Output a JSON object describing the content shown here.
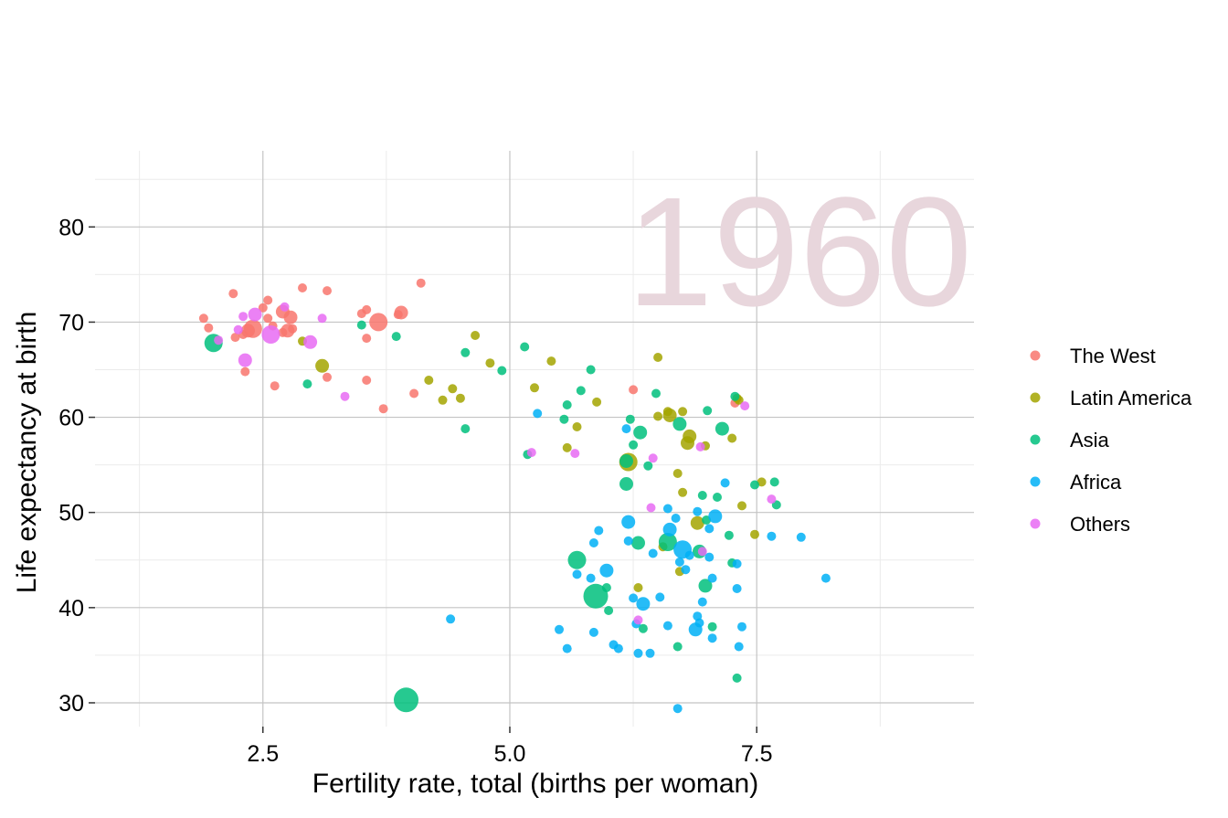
{
  "chart_data": {
    "type": "scatter",
    "title": "",
    "annotation": "1960",
    "xlabel": "Fertility rate, total (births per woman)",
    "ylabel": "Life expectancy at birth",
    "xlim": [
      0.8,
      9.7
    ],
    "ylim": [
      27.5,
      88
    ],
    "x_ticks": [
      2.5,
      5.0,
      7.5
    ],
    "x_tick_labels": [
      "2.5",
      "5.0",
      "7.5"
    ],
    "x_minor_ticks": [
      1.25,
      3.75,
      6.25,
      8.75
    ],
    "y_ticks": [
      30,
      40,
      50,
      60,
      70,
      80
    ],
    "y_tick_labels": [
      "30",
      "40",
      "50",
      "60",
      "70",
      "80"
    ],
    "y_minor_ticks": [
      35,
      45,
      55,
      65,
      75,
      85
    ],
    "grid": true,
    "legend_position": "right",
    "marker_size_encodes": "population",
    "colors": {
      "The West": "#F8766D",
      "Latin America": "#A3A500",
      "Asia": "#00BF7D",
      "Africa": "#00B0F6",
      "Others": "#E76BF3"
    },
    "legend": [
      "The West",
      "Latin America",
      "Asia",
      "Africa",
      "Others"
    ],
    "series": [
      {
        "name": "The West",
        "points": [
          [
            1.9,
            70.4,
            1
          ],
          [
            1.95,
            69.4,
            1
          ],
          [
            2.2,
            73.0,
            1
          ],
          [
            2.22,
            68.4,
            1
          ],
          [
            2.3,
            68.7,
            1
          ],
          [
            2.32,
            64.8,
            1
          ],
          [
            2.35,
            69.1,
            2
          ],
          [
            2.4,
            69.3,
            3
          ],
          [
            2.5,
            71.5,
            1
          ],
          [
            2.55,
            72.3,
            1
          ],
          [
            2.55,
            70.4,
            1
          ],
          [
            2.6,
            69.6,
            1
          ],
          [
            2.62,
            63.3,
            1
          ],
          [
            2.7,
            71.1,
            2
          ],
          [
            2.7,
            68.9,
            1
          ],
          [
            2.75,
            69.1,
            2
          ],
          [
            2.78,
            70.5,
            2
          ],
          [
            2.8,
            69.3,
            1
          ],
          [
            2.9,
            73.6,
            1
          ],
          [
            3.15,
            73.3,
            1
          ],
          [
            3.15,
            64.2,
            1
          ],
          [
            3.5,
            70.9,
            1
          ],
          [
            3.55,
            71.3,
            1
          ],
          [
            3.55,
            68.3,
            1
          ],
          [
            3.55,
            63.9,
            1
          ],
          [
            3.67,
            70.0,
            3
          ],
          [
            3.72,
            60.9,
            1
          ],
          [
            3.87,
            70.8,
            1
          ],
          [
            3.9,
            71.0,
            2
          ],
          [
            4.03,
            62.5,
            1
          ],
          [
            4.1,
            74.1,
            1
          ],
          [
            6.25,
            62.9,
            1
          ],
          [
            7.28,
            61.5,
            1
          ]
        ]
      },
      {
        "name": "Latin America",
        "points": [
          [
            2.9,
            68.0,
            1
          ],
          [
            3.1,
            65.4,
            2
          ],
          [
            4.18,
            63.9,
            1
          ],
          [
            4.32,
            61.8,
            1
          ],
          [
            4.42,
            63.0,
            1
          ],
          [
            4.5,
            62.0,
            1
          ],
          [
            4.65,
            68.6,
            1
          ],
          [
            4.8,
            65.7,
            1
          ],
          [
            5.25,
            63.1,
            1
          ],
          [
            5.42,
            65.9,
            1
          ],
          [
            5.58,
            56.8,
            1
          ],
          [
            5.68,
            59.0,
            1
          ],
          [
            5.88,
            61.6,
            1
          ],
          [
            6.2,
            55.3,
            3
          ],
          [
            6.3,
            42.1,
            1
          ],
          [
            6.5,
            66.3,
            1
          ],
          [
            6.5,
            60.1,
            1
          ],
          [
            6.55,
            46.4,
            1
          ],
          [
            6.6,
            60.6,
            1
          ],
          [
            6.62,
            60.2,
            2
          ],
          [
            6.7,
            54.1,
            1
          ],
          [
            6.72,
            43.8,
            1
          ],
          [
            6.75,
            52.1,
            1
          ],
          [
            6.75,
            60.6,
            1
          ],
          [
            6.8,
            57.3,
            2
          ],
          [
            6.82,
            58.0,
            2
          ],
          [
            6.9,
            48.9,
            2
          ],
          [
            6.98,
            57.0,
            1
          ],
          [
            7.25,
            57.8,
            1
          ],
          [
            7.3,
            62.0,
            1
          ],
          [
            7.32,
            61.8,
            1
          ],
          [
            7.35,
            50.7,
            1
          ],
          [
            7.48,
            47.7,
            1
          ],
          [
            7.55,
            53.2,
            1
          ]
        ]
      },
      {
        "name": "Asia",
        "points": [
          [
            2.0,
            67.8,
            3
          ],
          [
            2.95,
            63.5,
            1
          ],
          [
            3.5,
            69.7,
            1
          ],
          [
            3.85,
            68.5,
            1
          ],
          [
            3.95,
            30.3,
            5
          ],
          [
            4.55,
            66.8,
            1
          ],
          [
            4.55,
            58.8,
            1
          ],
          [
            4.92,
            64.9,
            1
          ],
          [
            5.15,
            67.4,
            1
          ],
          [
            5.18,
            56.1,
            1
          ],
          [
            5.55,
            59.8,
            1
          ],
          [
            5.58,
            61.3,
            1
          ],
          [
            5.68,
            45.0,
            3
          ],
          [
            5.72,
            62.8,
            1
          ],
          [
            5.82,
            65.0,
            1
          ],
          [
            5.87,
            41.2,
            5
          ],
          [
            5.98,
            42.1,
            1
          ],
          [
            6.0,
            39.7,
            1
          ],
          [
            6.18,
            55.4,
            2
          ],
          [
            6.18,
            53.0,
            2
          ],
          [
            6.22,
            59.8,
            1
          ],
          [
            6.25,
            57.1,
            1
          ],
          [
            6.3,
            46.8,
            2
          ],
          [
            6.32,
            58.4,
            2
          ],
          [
            6.35,
            37.8,
            1
          ],
          [
            6.4,
            54.9,
            1
          ],
          [
            6.48,
            62.5,
            1
          ],
          [
            6.6,
            46.9,
            3
          ],
          [
            6.7,
            35.9,
            1
          ],
          [
            6.72,
            59.3,
            2
          ],
          [
            6.92,
            45.9,
            2
          ],
          [
            6.95,
            51.8,
            1
          ],
          [
            6.98,
            42.3,
            2
          ],
          [
            6.99,
            49.2,
            1
          ],
          [
            7.0,
            60.7,
            1
          ],
          [
            7.05,
            38.0,
            1
          ],
          [
            7.1,
            51.6,
            1
          ],
          [
            7.15,
            58.8,
            2
          ],
          [
            7.22,
            47.6,
            1
          ],
          [
            7.25,
            44.7,
            1
          ],
          [
            7.28,
            62.2,
            1
          ],
          [
            7.3,
            32.6,
            1
          ],
          [
            7.48,
            52.9,
            1
          ],
          [
            7.68,
            53.2,
            1
          ],
          [
            7.7,
            50.8,
            1
          ]
        ]
      },
      {
        "name": "Africa",
        "points": [
          [
            4.4,
            38.8,
            1
          ],
          [
            5.28,
            60.4,
            1
          ],
          [
            5.5,
            37.7,
            1
          ],
          [
            5.58,
            35.7,
            1
          ],
          [
            5.68,
            43.5,
            1
          ],
          [
            5.82,
            43.1,
            1
          ],
          [
            5.85,
            37.4,
            1
          ],
          [
            5.85,
            46.8,
            1
          ],
          [
            5.9,
            48.1,
            1
          ],
          [
            5.98,
            43.9,
            2
          ],
          [
            6.05,
            36.1,
            1
          ],
          [
            6.1,
            35.7,
            1
          ],
          [
            6.18,
            58.8,
            1
          ],
          [
            6.2,
            49.0,
            2
          ],
          [
            6.2,
            47.0,
            1
          ],
          [
            6.25,
            41.0,
            1
          ],
          [
            6.28,
            38.3,
            1
          ],
          [
            6.3,
            35.2,
            1
          ],
          [
            6.35,
            40.4,
            2
          ],
          [
            6.42,
            35.2,
            1
          ],
          [
            6.45,
            45.7,
            1
          ],
          [
            6.52,
            41.1,
            1
          ],
          [
            6.6,
            38.1,
            1
          ],
          [
            6.6,
            50.4,
            1
          ],
          [
            6.62,
            48.2,
            2
          ],
          [
            6.68,
            49.4,
            1
          ],
          [
            6.7,
            29.4,
            1
          ],
          [
            6.72,
            44.8,
            1
          ],
          [
            6.75,
            46.1,
            3
          ],
          [
            6.78,
            44.0,
            1
          ],
          [
            6.82,
            45.5,
            1
          ],
          [
            6.88,
            37.7,
            2
          ],
          [
            6.9,
            50.1,
            1
          ],
          [
            6.9,
            39.1,
            1
          ],
          [
            6.92,
            38.4,
            1
          ],
          [
            6.95,
            40.6,
            1
          ],
          [
            7.02,
            45.3,
            1
          ],
          [
            7.02,
            48.3,
            1
          ],
          [
            7.05,
            36.8,
            1
          ],
          [
            7.05,
            43.1,
            1
          ],
          [
            7.08,
            49.6,
            2
          ],
          [
            7.18,
            53.1,
            1
          ],
          [
            7.3,
            42.0,
            1
          ],
          [
            7.3,
            44.6,
            1
          ],
          [
            7.32,
            35.9,
            1
          ],
          [
            7.35,
            38.0,
            1
          ],
          [
            7.65,
            47.5,
            1
          ],
          [
            7.95,
            47.4,
            1
          ],
          [
            8.2,
            43.1,
            1
          ]
        ]
      },
      {
        "name": "Others",
        "points": [
          [
            2.05,
            68.1,
            1
          ],
          [
            2.25,
            69.2,
            1
          ],
          [
            2.3,
            70.6,
            1
          ],
          [
            2.32,
            66.0,
            2
          ],
          [
            2.42,
            70.8,
            2
          ],
          [
            2.58,
            68.7,
            3
          ],
          [
            2.72,
            71.6,
            1
          ],
          [
            2.98,
            67.9,
            2
          ],
          [
            3.1,
            70.4,
            1
          ],
          [
            3.33,
            62.2,
            1
          ],
          [
            5.22,
            56.3,
            1
          ],
          [
            5.66,
            56.2,
            1
          ],
          [
            6.3,
            38.7,
            1
          ],
          [
            6.43,
            50.5,
            1
          ],
          [
            6.45,
            55.7,
            1
          ],
          [
            6.93,
            56.9,
            1
          ],
          [
            6.95,
            45.9,
            1
          ],
          [
            7.38,
            61.2,
            1
          ],
          [
            7.65,
            51.4,
            1
          ]
        ]
      }
    ]
  }
}
